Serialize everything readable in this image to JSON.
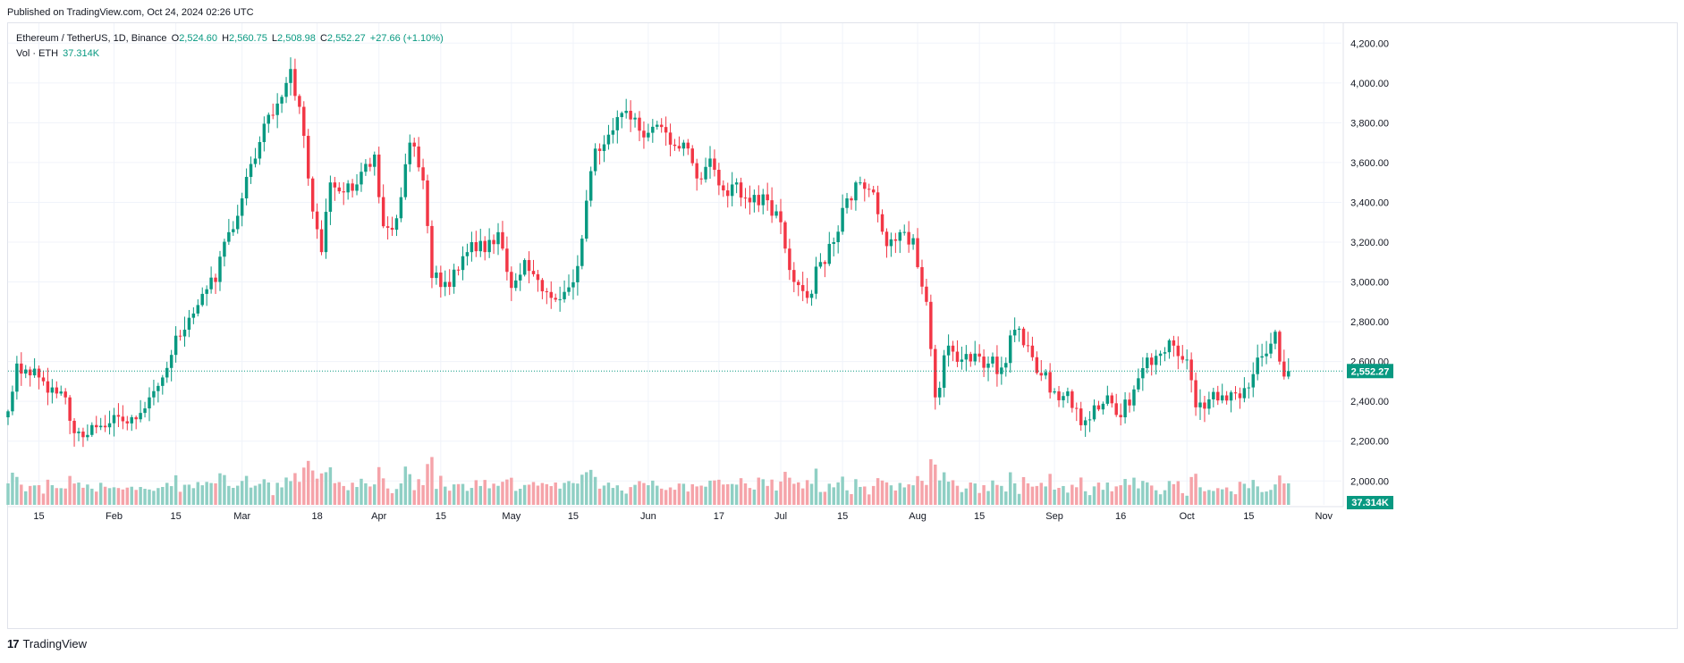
{
  "header": {
    "published": "Published on TradingView.com, Oct 24, 2024 02:26 UTC"
  },
  "legend": {
    "symbol": "Ethereum / TetherUS, 1D, Binance",
    "open_label": "O",
    "open": "2,524.60",
    "high_label": "H",
    "high": "2,560.75",
    "low_label": "L",
    "low": "2,508.98",
    "close_label": "C",
    "close": "2,552.27",
    "change": "+27.66 (+1.10%)",
    "vol_label": "Vol · ETH",
    "vol_value": "37.314K"
  },
  "footer": {
    "logo": "TradingView"
  },
  "colors": {
    "up": "#089981",
    "down": "#f23645",
    "vol_up": "#8fcfc4",
    "vol_down": "#f5a3a9",
    "grid": "#f0f3fa",
    "axis_text": "#131722",
    "price_tag": "#089981"
  },
  "chart_data": {
    "type": "candlestick",
    "symbol": "Ethereum / TetherUS",
    "interval": "1D",
    "exchange": "Binance",
    "y_range": [
      1880,
      4300
    ],
    "y_ticks": [
      2000,
      2200,
      2400,
      2600,
      2800,
      3000,
      3200,
      3400,
      3600,
      3800,
      4000,
      4200
    ],
    "y_tick_labels": [
      "2,000.00",
      "2,200.00",
      "2,400.00",
      "2,600.00",
      "2,800.00",
      "3,000.00",
      "3,200.00",
      "3,400.00",
      "3,600.00",
      "3,800.00",
      "4,000.00",
      "4,200.00"
    ],
    "x_range": [
      "2024-01-08",
      "2024-11-05"
    ],
    "x_ticks": [
      {
        "date": "2024-01-15",
        "label": "15"
      },
      {
        "date": "2024-02-01",
        "label": "Feb"
      },
      {
        "date": "2024-02-15",
        "label": "15"
      },
      {
        "date": "2024-03-01",
        "label": "Mar"
      },
      {
        "date": "2024-03-18",
        "label": "18"
      },
      {
        "date": "2024-04-01",
        "label": "Apr"
      },
      {
        "date": "2024-04-15",
        "label": "15"
      },
      {
        "date": "2024-05-01",
        "label": "May"
      },
      {
        "date": "2024-05-15",
        "label": "15"
      },
      {
        "date": "2024-06-01",
        "label": "Jun"
      },
      {
        "date": "2024-06-17",
        "label": "17"
      },
      {
        "date": "2024-07-01",
        "label": "Jul"
      },
      {
        "date": "2024-07-15",
        "label": "15"
      },
      {
        "date": "2024-08-01",
        "label": "Aug"
      },
      {
        "date": "2024-08-15",
        "label": "15"
      },
      {
        "date": "2024-09-01",
        "label": "Sep"
      },
      {
        "date": "2024-09-16",
        "label": "16"
      },
      {
        "date": "2024-10-01",
        "label": "Oct"
      },
      {
        "date": "2024-10-15",
        "label": "15"
      },
      {
        "date": "2024-11-01",
        "label": "Nov"
      }
    ],
    "last_price": 2552.27,
    "last_price_label": "2,552.27",
    "last_volume_label": "37.314K",
    "closes": [
      {
        "date": "2024-01-08",
        "close": 2350
      },
      {
        "date": "2024-01-10",
        "close": 2590
      },
      {
        "date": "2024-01-12",
        "close": 2560
      },
      {
        "date": "2024-01-15",
        "close": 2520
      },
      {
        "date": "2024-01-18",
        "close": 2470
      },
      {
        "date": "2024-01-21",
        "close": 2420
      },
      {
        "date": "2024-01-23",
        "close": 2240
      },
      {
        "date": "2024-01-25",
        "close": 2220
      },
      {
        "date": "2024-01-28",
        "close": 2270
      },
      {
        "date": "2024-01-31",
        "close": 2290
      },
      {
        "date": "2024-02-03",
        "close": 2300
      },
      {
        "date": "2024-02-06",
        "close": 2310
      },
      {
        "date": "2024-02-09",
        "close": 2420
      },
      {
        "date": "2024-02-12",
        "close": 2520
      },
      {
        "date": "2024-02-15",
        "close": 2730
      },
      {
        "date": "2024-02-18",
        "close": 2820
      },
      {
        "date": "2024-02-21",
        "close": 2940
      },
      {
        "date": "2024-02-24",
        "close": 3000
      },
      {
        "date": "2024-02-27",
        "close": 3250
      },
      {
        "date": "2024-03-01",
        "close": 3420
      },
      {
        "date": "2024-03-04",
        "close": 3620
      },
      {
        "date": "2024-03-07",
        "close": 3840
      },
      {
        "date": "2024-03-10",
        "close": 3930
      },
      {
        "date": "2024-03-12",
        "close": 4070
      },
      {
        "date": "2024-03-14",
        "close": 3880
      },
      {
        "date": "2024-03-16",
        "close": 3520
      },
      {
        "date": "2024-03-19",
        "close": 3150
      },
      {
        "date": "2024-03-21",
        "close": 3500
      },
      {
        "date": "2024-03-24",
        "close": 3450
      },
      {
        "date": "2024-03-27",
        "close": 3490
      },
      {
        "date": "2024-03-31",
        "close": 3640
      },
      {
        "date": "2024-04-02",
        "close": 3280
      },
      {
        "date": "2024-04-05",
        "close": 3320
      },
      {
        "date": "2024-04-08",
        "close": 3700
      },
      {
        "date": "2024-04-11",
        "close": 3510
      },
      {
        "date": "2024-04-13",
        "close": 3020
      },
      {
        "date": "2024-04-16",
        "close": 3000
      },
      {
        "date": "2024-04-19",
        "close": 3060
      },
      {
        "date": "2024-04-22",
        "close": 3200
      },
      {
        "date": "2024-04-25",
        "close": 3150
      },
      {
        "date": "2024-04-28",
        "close": 3250
      },
      {
        "date": "2024-05-01",
        "close": 2970
      },
      {
        "date": "2024-05-04",
        "close": 3110
      },
      {
        "date": "2024-05-07",
        "close": 3010
      },
      {
        "date": "2024-05-10",
        "close": 2920
      },
      {
        "date": "2024-05-13",
        "close": 2950
      },
      {
        "date": "2024-05-16",
        "close": 3080
      },
      {
        "date": "2024-05-20",
        "close": 3670
      },
      {
        "date": "2024-05-23",
        "close": 3740
      },
      {
        "date": "2024-05-27",
        "close": 3860
      },
      {
        "date": "2024-05-30",
        "close": 3760
      },
      {
        "date": "2024-06-03",
        "close": 3790
      },
      {
        "date": "2024-06-06",
        "close": 3690
      },
      {
        "date": "2024-06-09",
        "close": 3700
      },
      {
        "date": "2024-06-12",
        "close": 3520
      },
      {
        "date": "2024-06-15",
        "close": 3620
      },
      {
        "date": "2024-06-18",
        "close": 3460
      },
      {
        "date": "2024-06-21",
        "close": 3500
      },
      {
        "date": "2024-06-24",
        "close": 3400
      },
      {
        "date": "2024-06-27",
        "close": 3440
      },
      {
        "date": "2024-07-01",
        "close": 3300
      },
      {
        "date": "2024-07-04",
        "close": 3000
      },
      {
        "date": "2024-07-07",
        "close": 2920
      },
      {
        "date": "2024-07-10",
        "close": 3100
      },
      {
        "date": "2024-07-13",
        "close": 3200
      },
      {
        "date": "2024-07-16",
        "close": 3420
      },
      {
        "date": "2024-07-19",
        "close": 3500
      },
      {
        "date": "2024-07-22",
        "close": 3450
      },
      {
        "date": "2024-07-25",
        "close": 3180
      },
      {
        "date": "2024-07-28",
        "close": 3250
      },
      {
        "date": "2024-07-31",
        "close": 3220
      },
      {
        "date": "2024-08-03",
        "close": 2900
      },
      {
        "date": "2024-08-05",
        "close": 2420
      },
      {
        "date": "2024-08-08",
        "close": 2680
      },
      {
        "date": "2024-08-11",
        "close": 2610
      },
      {
        "date": "2024-08-14",
        "close": 2640
      },
      {
        "date": "2024-08-17",
        "close": 2590
      },
      {
        "date": "2024-08-20",
        "close": 2570
      },
      {
        "date": "2024-08-23",
        "close": 2760
      },
      {
        "date": "2024-08-26",
        "close": 2680
      },
      {
        "date": "2024-08-29",
        "close": 2530
      },
      {
        "date": "2024-09-01",
        "close": 2450
      },
      {
        "date": "2024-09-04",
        "close": 2450
      },
      {
        "date": "2024-09-07",
        "close": 2280
      },
      {
        "date": "2024-09-10",
        "close": 2380
      },
      {
        "date": "2024-09-13",
        "close": 2430
      },
      {
        "date": "2024-09-16",
        "close": 2320
      },
      {
        "date": "2024-09-19",
        "close": 2460
      },
      {
        "date": "2024-09-22",
        "close": 2620
      },
      {
        "date": "2024-09-25",
        "close": 2640
      },
      {
        "date": "2024-09-28",
        "close": 2680
      },
      {
        "date": "2024-10-01",
        "close": 2610
      },
      {
        "date": "2024-10-03",
        "close": 2370
      },
      {
        "date": "2024-10-06",
        "close": 2410
      },
      {
        "date": "2024-10-09",
        "close": 2430
      },
      {
        "date": "2024-10-12",
        "close": 2440
      },
      {
        "date": "2024-10-15",
        "close": 2470
      },
      {
        "date": "2024-10-17",
        "close": 2620
      },
      {
        "date": "2024-10-19",
        "close": 2640
      },
      {
        "date": "2024-10-21",
        "close": 2750
      },
      {
        "date": "2024-10-22",
        "close": 2600
      },
      {
        "date": "2024-10-23",
        "close": 2524.6
      },
      {
        "date": "2024-10-24",
        "close": 2552.27
      }
    ]
  }
}
